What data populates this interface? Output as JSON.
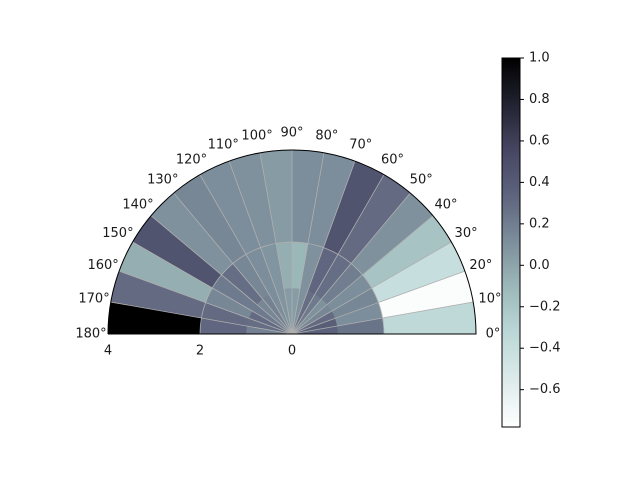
{
  "chart_data": {
    "type": "heatmap",
    "subtype": "polar-half",
    "theta_range_deg": [
      0,
      180
    ],
    "r_range": [
      0,
      4
    ],
    "theta_edges_deg": [
      0,
      10,
      20,
      30,
      40,
      50,
      60,
      70,
      80,
      90,
      100,
      110,
      120,
      130,
      140,
      150,
      160,
      170,
      180
    ],
    "r_edges": [
      0,
      1,
      2,
      4
    ],
    "theta_tick_labels": [
      "0°",
      "10°",
      "20°",
      "30°",
      "40°",
      "50°",
      "60°",
      "70°",
      "80°",
      "90°",
      "100°",
      "110°",
      "120°",
      "130°",
      "140°",
      "150°",
      "160°",
      "170°",
      "180°"
    ],
    "r_tick_labels": [
      "4",
      "2",
      "0"
    ],
    "r_tick_values": [
      4,
      2,
      0
    ],
    "values": [
      [
        0.35,
        0.38,
        0.3,
        0.15,
        0.1,
        0.22,
        0.28,
        0.1,
        0.04,
        0.05,
        0.08,
        0.12,
        0.18,
        0.15,
        0.22,
        0.3,
        0.28,
        0.18
      ],
      [
        0.25,
        0.12,
        0.15,
        0.12,
        0.2,
        0.28,
        0.32,
        0.1,
        -0.1,
        -0.05,
        0.08,
        0.12,
        0.15,
        0.28,
        0.22,
        0.15,
        0.3,
        0.32
      ],
      [
        -0.35,
        -0.75,
        -0.4,
        -0.18,
        0.1,
        0.3,
        0.45,
        0.12,
        0.12,
        0.05,
        0.1,
        0.12,
        0.15,
        0.1,
        0.45,
        -0.05,
        0.3,
        1.0
      ]
    ],
    "colorbar": {
      "colormap": "bone_r",
      "vmin": -0.78,
      "vmax": 1.0,
      "tick_values": [
        1.0,
        0.8,
        0.6,
        0.4,
        0.2,
        0.0,
        -0.2,
        -0.4,
        -0.6
      ],
      "tick_labels": [
        "1.0",
        "0.8",
        "0.6",
        "0.4",
        "0.2",
        "0.0",
        "−0.2",
        "−0.4",
        "−0.6"
      ]
    },
    "grid": true,
    "title": "",
    "xlabel": "",
    "ylabel": ""
  }
}
